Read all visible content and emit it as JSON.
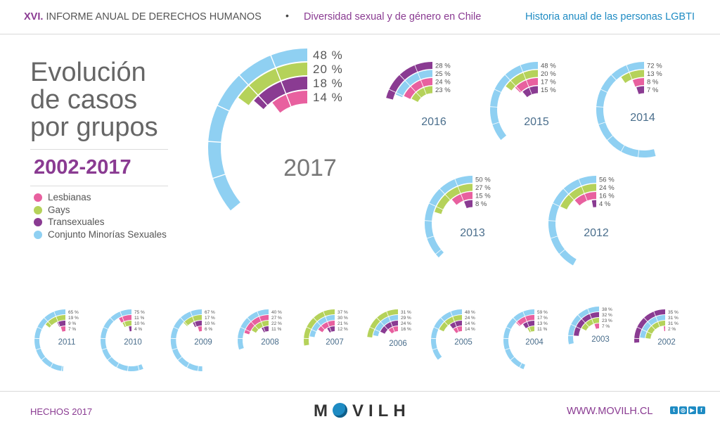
{
  "header": {
    "roman": "XVI.",
    "report": "INFORME ANUAL DE DERECHOS HUMANOS",
    "dot": "•",
    "subtitle": "Diversidad sexual y de género en Chile",
    "right": "Historia anual de las personas LGBTI"
  },
  "title_lines": [
    "Evolución",
    "de casos",
    "por grupos"
  ],
  "range": "2002-2017",
  "legend": [
    {
      "label": "Lesbianas",
      "color": "#e8609f"
    },
    {
      "label": "Gays",
      "color": "#b5d25a"
    },
    {
      "label": "Transexuales",
      "color": "#8a3b92"
    },
    {
      "label": "Conjunto Minorías Sexuales",
      "color": "#8fd0f2"
    }
  ],
  "colors": {
    "lesbianas": "#e8609f",
    "gays": "#b5d25a",
    "trans": "#8a3b92",
    "minorias": "#8fd0f2",
    "year_text": "#4a6e8c",
    "big_year_text": "#777777"
  },
  "chart_data": {
    "type": "radial-bar",
    "unit": "%",
    "series_order": [
      "Conjunto Minorías Sexuales",
      "Gays",
      "Transexuales",
      "Lesbianas"
    ],
    "years": [
      {
        "year": "2017",
        "values": [
          48,
          20,
          18,
          14
        ],
        "labels": [
          "48 %",
          "20 %",
          "18 %",
          "14 %"
        ]
      },
      {
        "year": "2016",
        "values": [
          28,
          25,
          24,
          23
        ],
        "labels": [
          "28 %",
          "25 %",
          "24 %",
          "23 %"
        ],
        "order": [
          "Transexuales",
          "Conjunto Minorías Sexuales",
          "Lesbianas",
          "Gays"
        ]
      },
      {
        "year": "2015",
        "values": [
          48,
          20,
          17,
          15
        ],
        "labels": [
          "48 %",
          "20 %",
          "17 %",
          "15 %"
        ],
        "order": [
          "Conjunto Minorías Sexuales",
          "Gays",
          "Lesbianas",
          "Transexuales"
        ]
      },
      {
        "year": "2014",
        "values": [
          72,
          13,
          8,
          7
        ],
        "labels": [
          "72 %",
          "13 %",
          "8 %",
          "7 %"
        ],
        "order": [
          "Conjunto Minorías Sexuales",
          "Gays",
          "Lesbianas",
          "Transexuales"
        ]
      },
      {
        "year": "2013",
        "values": [
          50,
          27,
          15,
          8
        ],
        "labels": [
          "50 %",
          "27 %",
          "15 %",
          "8 %"
        ],
        "order": [
          "Conjunto Minorías Sexuales",
          "Gays",
          "Lesbianas",
          "Transexuales"
        ]
      },
      {
        "year": "2012",
        "values": [
          56,
          24,
          16,
          4
        ],
        "labels": [
          "56 %",
          "24 %",
          "16 %",
          "4 %"
        ],
        "order": [
          "Conjunto Minorías Sexuales",
          "Gays",
          "Lesbianas",
          "Transexuales"
        ]
      },
      {
        "year": "2011",
        "values": [
          65,
          19,
          9,
          7
        ],
        "labels": [
          "65 %",
          "19 %",
          "9 %",
          "7 %"
        ],
        "order": [
          "Conjunto Minorías Sexuales",
          "Gays",
          "Transexuales",
          "Lesbianas"
        ]
      },
      {
        "year": "2010",
        "values": [
          75,
          11,
          10,
          4
        ],
        "labels": [
          "75 %",
          "11 %",
          "10 %",
          "4 %"
        ],
        "order": [
          "Conjunto Minorías Sexuales",
          "Lesbianas",
          "Gays",
          "Transexuales"
        ]
      },
      {
        "year": "2009",
        "values": [
          67,
          17,
          10,
          6
        ],
        "labels": [
          "67 %",
          "17 %",
          "10 %",
          "6 %"
        ],
        "order": [
          "Conjunto Minorías Sexuales",
          "Gays",
          "Transexuales",
          "Lesbianas"
        ]
      },
      {
        "year": "2008",
        "values": [
          40,
          27,
          22,
          11
        ],
        "labels": [
          "40 %",
          "27 %",
          "22 %",
          "11 %"
        ],
        "order": [
          "Conjunto Minorías Sexuales",
          "Lesbianas",
          "Gays",
          "Transexuales"
        ]
      },
      {
        "year": "2007",
        "values": [
          37,
          30,
          21,
          12
        ],
        "labels": [
          "37 %",
          "30 %",
          "21 %",
          "12 %"
        ],
        "order": [
          "Gays",
          "Conjunto Minorías Sexuales",
          "Lesbianas",
          "Transexuales"
        ]
      },
      {
        "year": "2006",
        "values": [
          31,
          29,
          24,
          16
        ],
        "labels": [
          "31 %",
          "29 %",
          "24 %",
          "16 %"
        ],
        "order": [
          "Gays",
          "Conjunto Minorías Sexuales",
          "Transexuales",
          "Lesbianas"
        ]
      },
      {
        "year": "2005",
        "values": [
          48,
          24,
          14,
          14
        ],
        "labels": [
          "48 %",
          "24 %",
          "14 %",
          "14 %"
        ],
        "order": [
          "Conjunto Minorías Sexuales",
          "Gays",
          "Transexuales",
          "Lesbianas"
        ]
      },
      {
        "year": "2004",
        "values": [
          59,
          17,
          13,
          11
        ],
        "labels": [
          "59 %",
          "17 %",
          "13 %",
          "11 %"
        ],
        "order": [
          "Conjunto Minorías Sexuales",
          "Lesbianas",
          "Transexuales",
          "Gays"
        ]
      },
      {
        "year": "2003",
        "values": [
          38,
          32,
          23,
          7
        ],
        "labels": [
          "38 %",
          "32 %",
          "23 %",
          "7 %"
        ],
        "order": [
          "Conjunto Minorías Sexuales",
          "Transexuales",
          "Gays",
          "Lesbianas"
        ]
      },
      {
        "year": "2002",
        "values": [
          35,
          31,
          31,
          2
        ],
        "labels": [
          "35 %",
          "31 %",
          "31 %",
          "2 %"
        ],
        "order": [
          "Transexuales",
          "Conjunto Minorías Sexuales",
          "Gays",
          "Lesbianas"
        ]
      }
    ]
  },
  "footer": {
    "left": "HECHOS 2017",
    "logo": "MOVILH",
    "url": "WWW.MOVILH.CL",
    "social": [
      "twitter-icon",
      "instagram-icon",
      "youtube-icon",
      "facebook-icon"
    ]
  }
}
